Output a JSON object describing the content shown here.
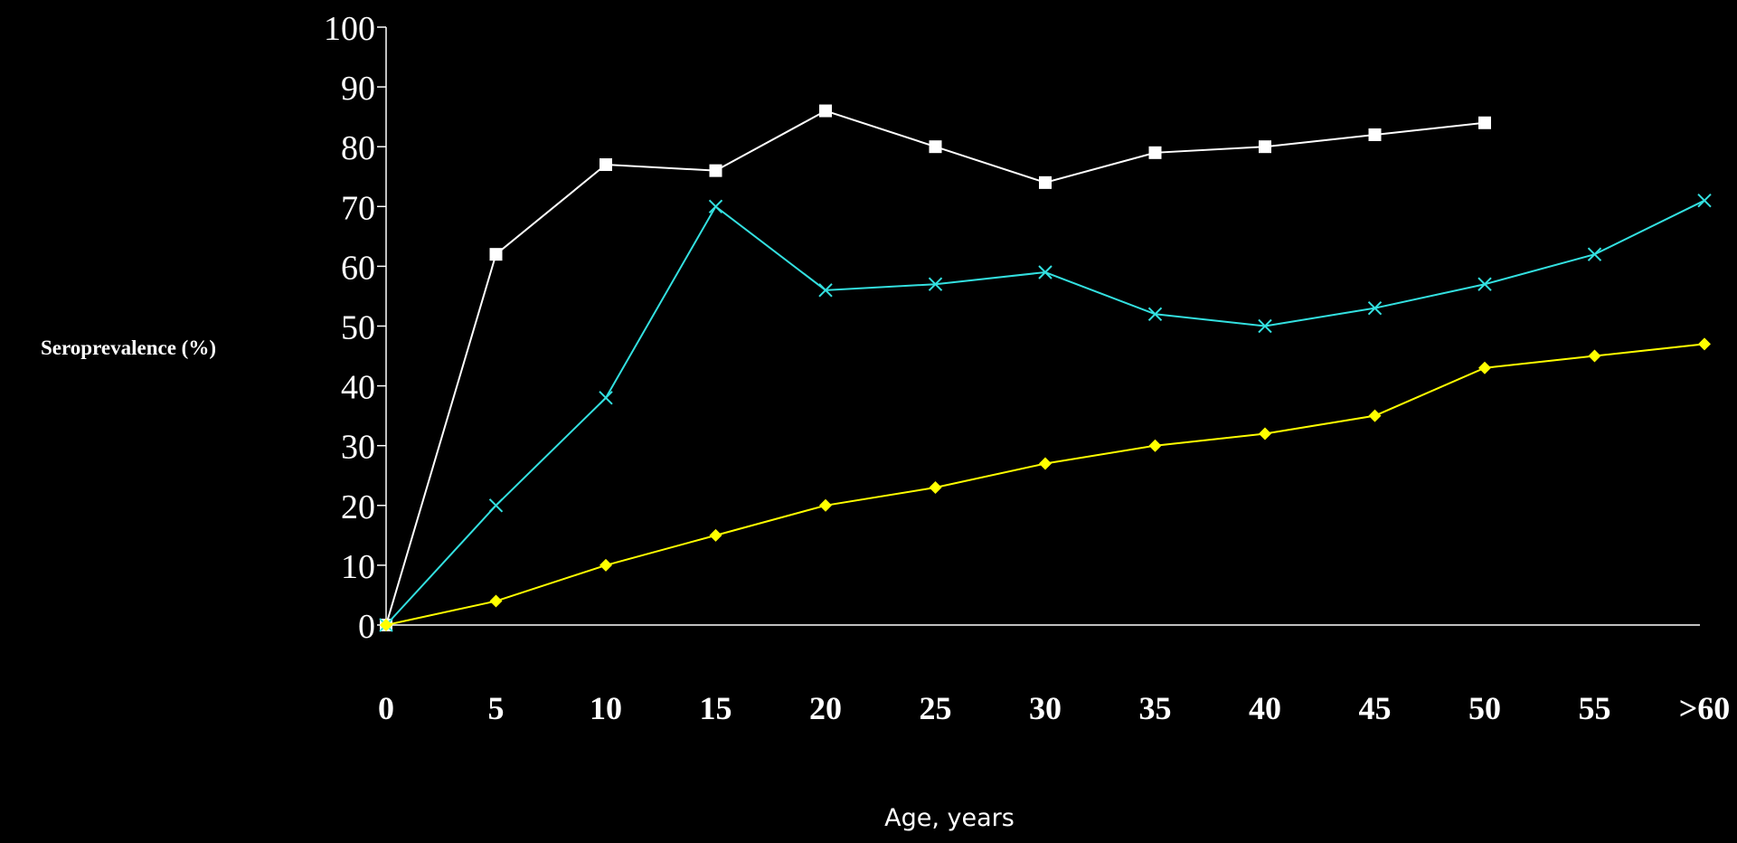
{
  "chart_data": {
    "type": "line",
    "title": "",
    "xlabel": "Age, years",
    "ylabel": "Seroprevalence (%)",
    "categories": [
      "0",
      "5",
      "10",
      "15",
      "20",
      "25",
      "30",
      "35",
      "40",
      "45",
      "50",
      "55",
      ">60"
    ],
    "yticks": [
      "0",
      "10",
      "20",
      "30",
      "40",
      "50",
      "60",
      "70",
      "80",
      "90",
      "100"
    ],
    "ylim": [
      0,
      100
    ],
    "grid": false,
    "legend": "none",
    "series": [
      {
        "marker": "square",
        "color": "#ffffff",
        "values": [
          0,
          62,
          77,
          76,
          86,
          80,
          74,
          79,
          80,
          82,
          84,
          null,
          null
        ]
      },
      {
        "marker": "x",
        "color": "#33e0e0",
        "values": [
          0,
          20,
          38,
          70,
          56,
          57,
          59,
          52,
          50,
          53,
          57,
          62,
          71
        ]
      },
      {
        "marker": "diamond",
        "color": "#ffff00",
        "values": [
          0,
          4,
          10,
          15,
          20,
          23,
          27,
          30,
          32,
          35,
          43,
          45,
          47
        ]
      }
    ]
  }
}
